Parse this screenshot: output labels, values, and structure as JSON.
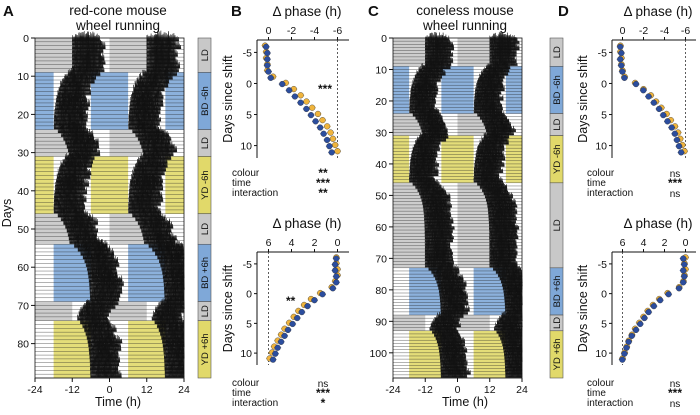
{
  "colors": {
    "yellow": "#e1d96a",
    "blue": "#7fa8d8",
    "gray": "#c8c8c8",
    "orange": "#f0b43c",
    "navy": "#2b4d9e",
    "black": "#111111"
  },
  "panels": {
    "A": {
      "label": "A",
      "title_lines": [
        "red-cone mouse",
        "wheel running"
      ],
      "ylabel": "Days",
      "xlabel": "Time (h)",
      "xticks": [
        "-24",
        "-12",
        "0",
        "12",
        "24"
      ],
      "yticks": [
        "0",
        "10",
        "20",
        "30",
        "40",
        "50",
        "60",
        "70",
        "80"
      ],
      "days_total": 89,
      "blocks": [
        {
          "start": 0,
          "end": 9,
          "cond": "LD"
        },
        {
          "start": 9,
          "end": 24,
          "cond": "BD -6h"
        },
        {
          "start": 24,
          "end": 31,
          "cond": "LD"
        },
        {
          "start": 31,
          "end": 46,
          "cond": "YD -6h"
        },
        {
          "start": 46,
          "end": 54,
          "cond": "LD"
        },
        {
          "start": 54,
          "end": 69,
          "cond": "BD +6h"
        },
        {
          "start": 69,
          "end": 74,
          "cond": "LD"
        },
        {
          "start": 74,
          "end": 89,
          "cond": "YD +6h"
        }
      ]
    },
    "B": {
      "label": "B",
      "top": {
        "title": "Δ phase (h)",
        "xticks": [
          "0",
          "-2",
          "-4",
          "-6"
        ],
        "ylabel": "Days since shift",
        "yticks": [
          "-5",
          "0",
          "5",
          "10"
        ],
        "sig_annotation": "***",
        "stats": [
          {
            "label": "colour",
            "sig": "**"
          },
          {
            "label": "time",
            "sig": "***"
          },
          {
            "label": "interaction",
            "sig": "**"
          }
        ]
      },
      "bottom": {
        "title": "Δ phase (h)",
        "xticks": [
          "6",
          "4",
          "2",
          "0"
        ],
        "ylabel": "Days since shift",
        "yticks": [
          "-5",
          "0",
          "5",
          "10"
        ],
        "sig_annotation": "**",
        "stats": [
          {
            "label": "colour",
            "sig": "ns"
          },
          {
            "label": "time",
            "sig": "***"
          },
          {
            "label": "interaction",
            "sig": "*"
          }
        ]
      }
    },
    "C": {
      "label": "C",
      "title_lines": [
        "coneless mouse",
        "wheel running"
      ],
      "xlabel": "Time (h)",
      "xticks": [
        "-24",
        "-12",
        "0",
        "12",
        "24"
      ],
      "yticks": [
        "0",
        "10",
        "20",
        "30",
        "40",
        "50",
        "60",
        "70",
        "80",
        "90",
        "100"
      ],
      "days_total": 108,
      "blocks": [
        {
          "start": 0,
          "end": 9,
          "cond": "LD"
        },
        {
          "start": 9,
          "end": 24,
          "cond": "BD -6h"
        },
        {
          "start": 24,
          "end": 31,
          "cond": "LD"
        },
        {
          "start": 31,
          "end": 46,
          "cond": "YD -6h"
        },
        {
          "start": 46,
          "end": 73,
          "cond": "LD"
        },
        {
          "start": 73,
          "end": 88,
          "cond": "BD +6h"
        },
        {
          "start": 88,
          "end": 93,
          "cond": "LD"
        },
        {
          "start": 93,
          "end": 108,
          "cond": "YD +6h"
        }
      ]
    },
    "D": {
      "label": "D",
      "top": {
        "title": "Δ phase (h)",
        "xticks": [
          "0",
          "-2",
          "-4",
          "-6"
        ],
        "ylabel": "Days since shift",
        "yticks": [
          "-5",
          "0",
          "5",
          "10"
        ],
        "stats": [
          {
            "label": "colour",
            "sig": "ns"
          },
          {
            "label": "time",
            "sig": "***"
          },
          {
            "label": "interaction",
            "sig": "ns"
          }
        ]
      },
      "bottom": {
        "title": "Δ phase (h)",
        "xticks": [
          "6",
          "4",
          "2",
          "0"
        ],
        "ylabel": "Days since shift",
        "yticks": [
          "-5",
          "0",
          "5",
          "10"
        ],
        "stats": [
          {
            "label": "colour",
            "sig": "ns"
          },
          {
            "label": "time",
            "sig": "***"
          },
          {
            "label": "interaction",
            "sig": "ns"
          }
        ]
      }
    }
  },
  "chart_data": [
    {
      "type": "scatter",
      "panel": "B-top",
      "title": "Δ phase (h)",
      "xlabel": "Δ phase (h)",
      "ylabel": "Days since shift",
      "xlim": [
        1,
        -7
      ],
      "ylim": [
        -7,
        12
      ],
      "series": [
        {
          "name": "yellow",
          "x": [
            0.3,
            0.2,
            0.2,
            0.1,
            0.1,
            -0.4,
            -1.5,
            -2.2,
            -2.8,
            -3.3,
            -3.8,
            -4.3,
            -4.7,
            -5.1,
            -5.4,
            -5.6,
            -5.8,
            -6.0
          ],
          "y": [
            -6,
            -5,
            -4,
            -3,
            -2,
            -1,
            0,
            1,
            2,
            3,
            4,
            5,
            6,
            7,
            8,
            9,
            10,
            11
          ]
        },
        {
          "name": "blue",
          "x": [
            0.1,
            0.0,
            0.0,
            0.0,
            -0.1,
            -0.3,
            -1.3,
            -1.9,
            -2.4,
            -2.9,
            -3.4,
            -3.8,
            -4.2,
            -4.6,
            -4.9,
            -5.2,
            -5.4,
            -5.6
          ],
          "y": [
            -6,
            -5,
            -4,
            -3,
            -2,
            -1,
            0,
            1,
            2,
            3,
            4,
            5,
            6,
            7,
            8,
            9,
            10,
            11
          ]
        }
      ]
    },
    {
      "type": "scatter",
      "panel": "B-bottom",
      "title": "Δ phase (h)",
      "xlabel": "Δ phase (h)",
      "ylabel": "Days since shift",
      "xlim": [
        7,
        -1
      ],
      "ylim": [
        -7,
        12
      ],
      "series": [
        {
          "name": "yellow",
          "x": [
            0.1,
            0.1,
            0.0,
            0.0,
            0.2,
            0.5,
            1.5,
            2.3,
            2.9,
            3.4,
            3.8,
            4.2,
            4.6,
            4.9,
            5.2,
            5.5,
            5.7,
            5.9
          ],
          "y": [
            -6,
            -5,
            -4,
            -3,
            -2,
            -1,
            0,
            1,
            2,
            3,
            4,
            5,
            6,
            7,
            8,
            9,
            10,
            11
          ]
        },
        {
          "name": "blue",
          "x": [
            0.0,
            0.1,
            0.1,
            0.0,
            0.0,
            0.3,
            1.2,
            1.9,
            2.5,
            3.0,
            3.4,
            3.8,
            4.2,
            4.5,
            4.8,
            5.1,
            5.3,
            5.5
          ],
          "y": [
            -6,
            -5,
            -4,
            -3,
            -2,
            -1,
            0,
            1,
            2,
            3,
            4,
            5,
            6,
            7,
            8,
            9,
            10,
            11
          ]
        }
      ]
    },
    {
      "type": "scatter",
      "panel": "D-top",
      "title": "Δ phase (h)",
      "xlabel": "Δ phase (h)",
      "ylabel": "Days since shift",
      "xlim": [
        1,
        -7
      ],
      "ylim": [
        -7,
        12
      ],
      "series": [
        {
          "name": "yellow",
          "x": [
            0.2,
            0.2,
            0.1,
            0.1,
            0.0,
            -0.2,
            -1.2,
            -2.0,
            -2.7,
            -3.2,
            -3.7,
            -4.2,
            -4.6,
            -5.0,
            -5.3,
            -5.5,
            -5.7,
            -5.9
          ],
          "y": [
            -6,
            -5,
            -4,
            -3,
            -2,
            -1,
            0,
            1,
            2,
            3,
            4,
            5,
            6,
            7,
            8,
            9,
            10,
            11
          ]
        },
        {
          "name": "blue",
          "x": [
            0.1,
            0.0,
            0.1,
            0.0,
            -0.1,
            -0.3,
            -1.4,
            -2.1,
            -2.6,
            -3.1,
            -3.6,
            -4.0,
            -4.4,
            -4.8,
            -5.1,
            -5.3,
            -5.5,
            -5.7
          ],
          "y": [
            -6,
            -5,
            -4,
            -3,
            -2,
            -1,
            0,
            1,
            2,
            3,
            4,
            5,
            6,
            7,
            8,
            9,
            10,
            11
          ]
        }
      ]
    },
    {
      "type": "scatter",
      "panel": "D-bottom",
      "title": "Δ phase (h)",
      "xlabel": "Δ phase (h)",
      "ylabel": "Days since shift",
      "xlim": [
        7,
        -1
      ],
      "ylim": [
        -7,
        12
      ],
      "series": [
        {
          "name": "yellow",
          "x": [
            0.0,
            0.1,
            0.0,
            0.1,
            0.2,
            0.6,
            1.7,
            2.5,
            3.1,
            3.6,
            4.0,
            4.4,
            4.8,
            5.1,
            5.4,
            5.6,
            5.8,
            6.0
          ],
          "y": [
            -6,
            -5,
            -4,
            -3,
            -2,
            -1,
            0,
            1,
            2,
            3,
            4,
            5,
            6,
            7,
            8,
            9,
            10,
            11
          ]
        },
        {
          "name": "blue",
          "x": [
            0.1,
            0.0,
            0.1,
            0.0,
            0.1,
            0.5,
            1.5,
            2.3,
            2.9,
            3.4,
            3.8,
            4.2,
            4.6,
            5.0,
            5.3,
            5.5,
            5.7,
            5.9
          ],
          "y": [
            -6,
            -5,
            -4,
            -3,
            -2,
            -1,
            0,
            1,
            2,
            3,
            4,
            5,
            6,
            7,
            8,
            9,
            10,
            11
          ]
        }
      ]
    }
  ]
}
